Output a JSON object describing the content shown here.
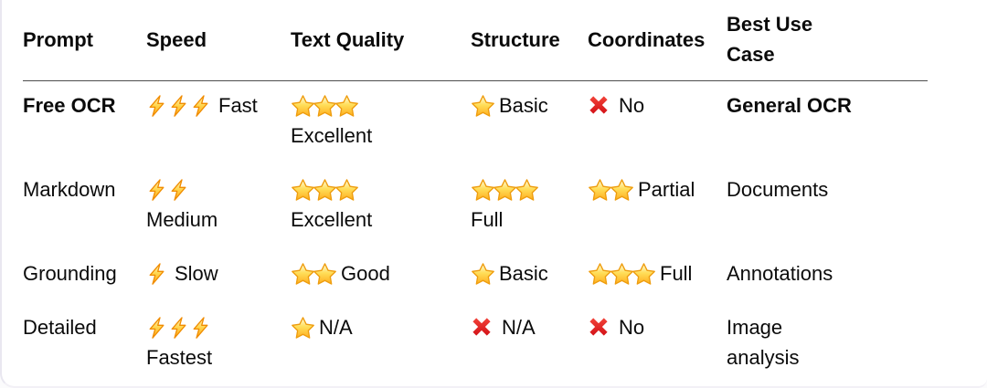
{
  "table": {
    "columns": [
      "Prompt",
      "Speed",
      "Text Quality",
      "Structure",
      "Coordinates",
      "Best Use Case"
    ],
    "rows": [
      {
        "prompt": {
          "label": "Free OCR",
          "bold": true
        },
        "speed": {
          "icon": "lightning",
          "count": 3,
          "label": "Fast",
          "label_on_new_line": false
        },
        "text_quality": {
          "icon": "star",
          "count": 3,
          "label": "Excellent",
          "label_on_new_line": true
        },
        "structure": {
          "icon": "star",
          "count": 1,
          "label": "Basic",
          "label_on_new_line": false
        },
        "coordinates": {
          "icon": "cross",
          "count": 1,
          "label": "No",
          "label_on_new_line": false
        },
        "best_use_case": {
          "label": "General OCR",
          "bold": true,
          "wrap": false
        }
      },
      {
        "prompt": {
          "label": "Markdown",
          "bold": false
        },
        "speed": {
          "icon": "lightning",
          "count": 2,
          "label": "Medium",
          "label_on_new_line": true
        },
        "text_quality": {
          "icon": "star",
          "count": 3,
          "label": "Excellent",
          "label_on_new_line": true
        },
        "structure": {
          "icon": "star",
          "count": 3,
          "label": "Full",
          "label_on_new_line": true
        },
        "coordinates": {
          "icon": "star",
          "count": 2,
          "label": "Partial",
          "label_on_new_line": false
        },
        "best_use_case": {
          "label": "Documents",
          "bold": false,
          "wrap": false
        }
      },
      {
        "prompt": {
          "label": "Grounding",
          "bold": false
        },
        "speed": {
          "icon": "lightning",
          "count": 1,
          "label": "Slow",
          "label_on_new_line": false
        },
        "text_quality": {
          "icon": "star",
          "count": 2,
          "label": "Good",
          "label_on_new_line": false
        },
        "structure": {
          "icon": "star",
          "count": 1,
          "label": "Basic",
          "label_on_new_line": false
        },
        "coordinates": {
          "icon": "star",
          "count": 3,
          "label": "Full",
          "label_on_new_line": false
        },
        "best_use_case": {
          "label": "Annotations",
          "bold": false,
          "wrap": false
        }
      },
      {
        "prompt": {
          "label": "Detailed",
          "bold": false
        },
        "speed": {
          "icon": "lightning",
          "count": 3,
          "label": "Fastest",
          "label_on_new_line": true
        },
        "text_quality": {
          "icon": "star",
          "count": 1,
          "label": "N/A",
          "label_on_new_line": false
        },
        "structure": {
          "icon": "cross",
          "count": 1,
          "label": "N/A",
          "label_on_new_line": false
        },
        "coordinates": {
          "icon": "cross",
          "count": 1,
          "label": "No",
          "label_on_new_line": false
        },
        "best_use_case": {
          "label": "Image analysis",
          "bold": false,
          "wrap": true
        }
      }
    ]
  },
  "icons": {
    "lightning": "lightning-icon",
    "star": "star-icon",
    "cross": "cross-icon"
  },
  "colors": {
    "text": "#0b0b0b",
    "header_rule": "#4d4d4d",
    "star_gold": "#FFD54A",
    "star_outline": "#EE9C0D",
    "bolt_orange": "#F08C00",
    "cross_red": "#E01E1F",
    "card_edge": "#e9e7f0"
  }
}
